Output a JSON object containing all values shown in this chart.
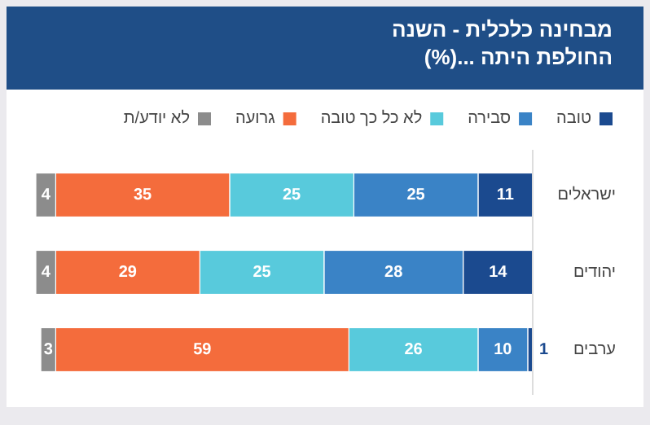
{
  "chart_data": {
    "type": "bar",
    "orientation": "horizontal",
    "stacked": true,
    "title": "מבחינה כלכלית - השנה החולפת היתה ...(%)",
    "categories": [
      "ישראלים",
      "יהודים",
      "ערבים"
    ],
    "xlim": [
      100,
      0
    ],
    "tick_labels": "y",
    "data_labels": true,
    "legend": "top",
    "series": [
      {
        "name": "טובה",
        "color": "#1b4a8f",
        "values": [
          11,
          14,
          1
        ]
      },
      {
        "name": "סבירה",
        "color": "#3a83c6",
        "values": [
          25,
          28,
          10
        ]
      },
      {
        "name": "לא כל כך טובה",
        "color": "#58cadc",
        "values": [
          25,
          25,
          26
        ]
      },
      {
        "name": "גרועה",
        "color": "#f46c3c",
        "values": [
          35,
          29,
          59
        ]
      },
      {
        "name": "לא יודע/ת",
        "color": "#8c8c8c",
        "values": [
          4,
          4,
          3
        ]
      }
    ]
  }
}
